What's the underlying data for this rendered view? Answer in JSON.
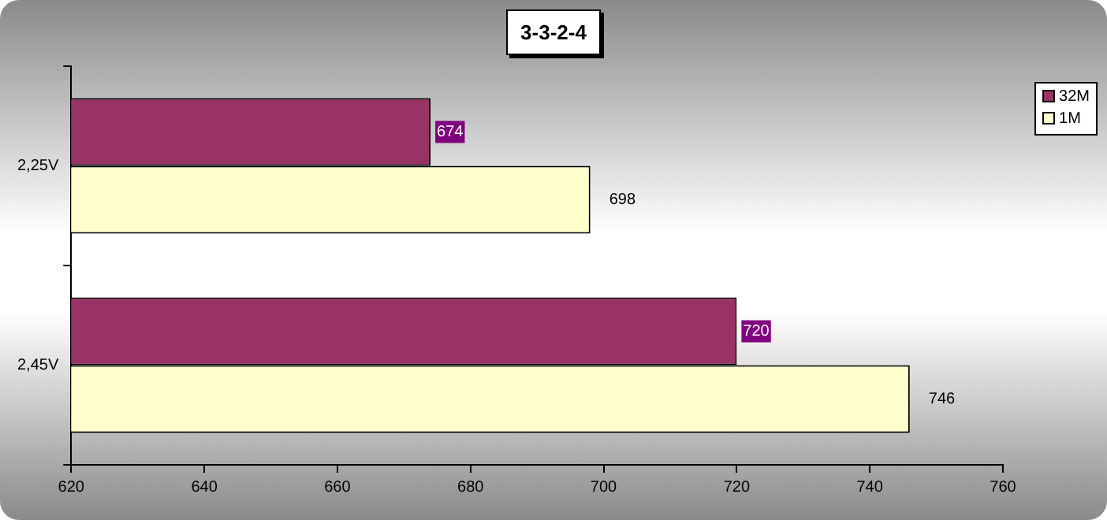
{
  "chart_data": {
    "type": "bar",
    "orientation": "horizontal",
    "title": "3-3-2-4",
    "categories": [
      "2,25V",
      "2,45V"
    ],
    "series": [
      {
        "name": "32M",
        "color": "#993366",
        "values": [
          674,
          720
        ]
      },
      {
        "name": "1M",
        "color": "#ffffcc",
        "values": [
          698,
          746
        ]
      }
    ],
    "xlim": [
      620,
      760
    ],
    "xticks": [
      620,
      640,
      660,
      680,
      700,
      720,
      740,
      760
    ],
    "grid": false,
    "legend": "right",
    "data_labels": true
  }
}
